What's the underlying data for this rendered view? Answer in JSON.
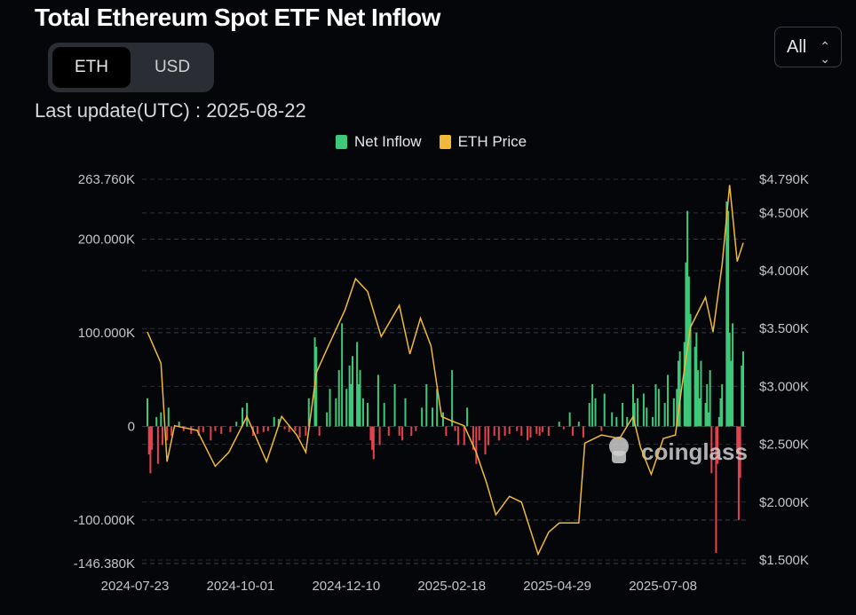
{
  "header": {
    "title": "Total Ethereum Spot ETF Net Inflow",
    "last_update": "Last update(UTC) : 2025-08-22"
  },
  "unit_toggle": {
    "options": [
      "ETH",
      "USD"
    ],
    "selected": "ETH"
  },
  "range_select": {
    "value": "All",
    "icon": "up-down-chevron-icon"
  },
  "watermark": "coinglass",
  "chart_data": {
    "type": "bar+line",
    "legend": {
      "placement": "top-center",
      "items": [
        {
          "name": "Net Inflow",
          "color": "#3ec97a"
        },
        {
          "name": "ETH Price",
          "color": "#f0b93a"
        }
      ]
    },
    "colors": {
      "positive": "#3ec97a",
      "negative": "#e5424d",
      "price": "#f0b93a"
    },
    "x_ticks": [
      "2024-07-23",
      "2024-10-01",
      "2024-12-10",
      "2025-02-18",
      "2025-04-29",
      "2025-07-08"
    ],
    "x_range": [
      "2024-07-23",
      "2025-08-22"
    ],
    "y_left": {
      "ticks": [
        "263.760K",
        "200.000K",
        "100.000K",
        "0",
        "-100.000K",
        "-146.380K"
      ],
      "range": [
        -146.38,
        263.76
      ],
      "unit": "K ETH"
    },
    "y_right": {
      "ticks": [
        "$4.790K",
        "$4.500K",
        "$4.000K",
        "$3.500K",
        "$3.000K",
        "$2.500K",
        "$2.000K",
        "$1.500K"
      ],
      "range": [
        1500,
        4790
      ],
      "unit": "USD"
    },
    "grid": true,
    "series": [
      {
        "name": "Net Inflow",
        "axis": "left",
        "points": [
          [
            "2024-07-23",
            30
          ],
          [
            "2024-07-24",
            -30
          ],
          [
            "2024-07-25",
            -50
          ],
          [
            "2024-07-26",
            -25
          ],
          [
            "2024-07-29",
            10
          ],
          [
            "2024-07-30",
            -40
          ],
          [
            "2024-08-01",
            15
          ],
          [
            "2024-08-02",
            -20
          ],
          [
            "2024-08-05",
            -15
          ],
          [
            "2024-08-06",
            20
          ],
          [
            "2024-08-08",
            -10
          ],
          [
            "2024-08-13",
            5
          ],
          [
            "2024-08-16",
            -5
          ],
          [
            "2024-08-21",
            -8
          ],
          [
            "2024-08-26",
            -10
          ],
          [
            "2024-08-29",
            -6
          ],
          [
            "2024-09-03",
            -15
          ],
          [
            "2024-09-06",
            -5
          ],
          [
            "2024-09-10",
            -8
          ],
          [
            "2024-09-16",
            -6
          ],
          [
            "2024-09-20",
            5
          ],
          [
            "2024-09-24",
            20
          ],
          [
            "2024-09-27",
            25
          ],
          [
            "2024-10-01",
            -10
          ],
          [
            "2024-10-04",
            -8
          ],
          [
            "2024-10-08",
            -6
          ],
          [
            "2024-10-11",
            -5
          ],
          [
            "2024-10-15",
            10
          ],
          [
            "2024-10-18",
            8
          ],
          [
            "2024-10-22",
            -3
          ],
          [
            "2024-10-25",
            -6
          ],
          [
            "2024-10-29",
            -5
          ],
          [
            "2024-11-01",
            -12
          ],
          [
            "2024-11-05",
            -10
          ],
          [
            "2024-11-07",
            30
          ],
          [
            "2024-11-11",
            95
          ],
          [
            "2024-11-12",
            85
          ],
          [
            "2024-11-14",
            -10
          ],
          [
            "2024-11-19",
            15
          ],
          [
            "2024-11-21",
            40
          ],
          [
            "2024-11-25",
            30
          ],
          [
            "2024-11-27",
            60
          ],
          [
            "2024-11-29",
            110
          ],
          [
            "2024-12-02",
            40
          ],
          [
            "2024-12-04",
            65
          ],
          [
            "2024-12-05",
            45
          ],
          [
            "2024-12-06",
            75
          ],
          [
            "2024-12-09",
            90
          ],
          [
            "2024-12-10",
            45
          ],
          [
            "2024-12-11",
            60
          ],
          [
            "2024-12-13",
            30
          ],
          [
            "2024-12-16",
            25
          ],
          [
            "2024-12-18",
            -15
          ],
          [
            "2024-12-19",
            -25
          ],
          [
            "2024-12-20",
            -35
          ],
          [
            "2024-12-23",
            55
          ],
          [
            "2024-12-24",
            -20
          ],
          [
            "2024-12-27",
            25
          ],
          [
            "2024-12-30",
            -10
          ],
          [
            "2025-01-03",
            45
          ],
          [
            "2025-01-06",
            -10
          ],
          [
            "2025-01-08",
            -15
          ],
          [
            "2025-01-10",
            30
          ],
          [
            "2025-01-14",
            -10
          ],
          [
            "2025-01-17",
            -5
          ],
          [
            "2025-01-21",
            20
          ],
          [
            "2025-01-24",
            45
          ],
          [
            "2025-01-28",
            20
          ],
          [
            "2025-01-31",
            40
          ],
          [
            "2025-02-04",
            15
          ],
          [
            "2025-02-06",
            -10
          ],
          [
            "2025-02-10",
            60
          ],
          [
            "2025-02-12",
            -5
          ],
          [
            "2025-02-14",
            -20
          ],
          [
            "2025-02-18",
            -20
          ],
          [
            "2025-02-20",
            20
          ],
          [
            "2025-02-24",
            -25
          ],
          [
            "2025-02-26",
            -40
          ],
          [
            "2025-02-28",
            -15
          ],
          [
            "2025-03-04",
            -30
          ],
          [
            "2025-03-06",
            -20
          ],
          [
            "2025-03-10",
            -10
          ],
          [
            "2025-03-13",
            -15
          ],
          [
            "2025-03-17",
            -10
          ],
          [
            "2025-03-20",
            -8
          ],
          [
            "2025-03-25",
            -5
          ],
          [
            "2025-03-28",
            -10
          ],
          [
            "2025-04-01",
            -15
          ],
          [
            "2025-04-03",
            -12
          ],
          [
            "2025-04-07",
            -8
          ],
          [
            "2025-04-09",
            -10
          ],
          [
            "2025-04-11",
            -6
          ],
          [
            "2025-04-15",
            -10
          ],
          [
            "2025-04-22",
            5
          ],
          [
            "2025-04-25",
            -3
          ],
          [
            "2025-04-29",
            15
          ],
          [
            "2025-05-01",
            -10
          ],
          [
            "2025-05-05",
            5
          ],
          [
            "2025-05-08",
            -12
          ],
          [
            "2025-05-12",
            25
          ],
          [
            "2025-05-14",
            45
          ],
          [
            "2025-05-16",
            30
          ],
          [
            "2025-05-20",
            -5
          ],
          [
            "2025-05-22",
            35
          ],
          [
            "2025-05-27",
            15
          ],
          [
            "2025-05-30",
            10
          ],
          [
            "2025-06-03",
            25
          ],
          [
            "2025-06-06",
            10
          ],
          [
            "2025-06-10",
            45
          ],
          [
            "2025-06-11",
            25
          ],
          [
            "2025-06-13",
            30
          ],
          [
            "2025-06-17",
            35
          ],
          [
            "2025-06-19",
            20
          ],
          [
            "2025-06-23",
            10
          ],
          [
            "2025-06-25",
            45
          ],
          [
            "2025-06-27",
            40
          ],
          [
            "2025-07-01",
            25
          ],
          [
            "2025-07-03",
            55
          ],
          [
            "2025-07-07",
            30
          ],
          [
            "2025-07-09",
            40
          ],
          [
            "2025-07-10",
            70
          ],
          [
            "2025-07-11",
            80
          ],
          [
            "2025-07-14",
            90
          ],
          [
            "2025-07-15",
            175
          ],
          [
            "2025-07-16",
            230
          ],
          [
            "2025-07-17",
            160
          ],
          [
            "2025-07-18",
            120
          ],
          [
            "2025-07-21",
            85
          ],
          [
            "2025-07-22",
            100
          ],
          [
            "2025-07-23",
            60
          ],
          [
            "2025-07-24",
            30
          ],
          [
            "2025-07-25",
            70
          ],
          [
            "2025-07-28",
            25
          ],
          [
            "2025-07-29",
            45
          ],
          [
            "2025-07-30",
            15
          ],
          [
            "2025-07-31",
            60
          ],
          [
            "2025-08-01",
            -50
          ],
          [
            "2025-08-04",
            -135
          ],
          [
            "2025-08-05",
            -40
          ],
          [
            "2025-08-06",
            10
          ],
          [
            "2025-08-07",
            30
          ],
          [
            "2025-08-08",
            45
          ],
          [
            "2025-08-11",
            240
          ],
          [
            "2025-08-12",
            230
          ],
          [
            "2025-08-13",
            100
          ],
          [
            "2025-08-14",
            70
          ],
          [
            "2025-08-15",
            110
          ],
          [
            "2025-08-18",
            -30
          ],
          [
            "2025-08-19",
            -100
          ],
          [
            "2025-08-20",
            -55
          ],
          [
            "2025-08-21",
            65
          ],
          [
            "2025-08-22",
            80
          ]
        ]
      },
      {
        "name": "ETH Price",
        "axis": "right",
        "points": [
          [
            "2024-07-23",
            3470
          ],
          [
            "2024-08-01",
            3200
          ],
          [
            "2024-08-05",
            2350
          ],
          [
            "2024-08-10",
            2660
          ],
          [
            "2024-08-25",
            2620
          ],
          [
            "2024-09-06",
            2310
          ],
          [
            "2024-09-15",
            2430
          ],
          [
            "2024-09-27",
            2740
          ],
          [
            "2024-10-10",
            2350
          ],
          [
            "2024-10-20",
            2740
          ],
          [
            "2024-10-30",
            2580
          ],
          [
            "2024-11-05",
            2430
          ],
          [
            "2024-11-12",
            3120
          ],
          [
            "2024-11-20",
            3350
          ],
          [
            "2024-12-01",
            3660
          ],
          [
            "2024-12-08",
            3930
          ],
          [
            "2024-12-16",
            3820
          ],
          [
            "2024-12-25",
            3430
          ],
          [
            "2025-01-06",
            3700
          ],
          [
            "2025-01-13",
            3280
          ],
          [
            "2025-01-20",
            3590
          ],
          [
            "2025-01-27",
            3350
          ],
          [
            "2025-02-03",
            2740
          ],
          [
            "2025-02-10",
            2700
          ],
          [
            "2025-02-18",
            2660
          ],
          [
            "2025-02-26",
            2430
          ],
          [
            "2025-03-05",
            2160
          ],
          [
            "2025-03-11",
            1890
          ],
          [
            "2025-03-20",
            2050
          ],
          [
            "2025-03-28",
            2000
          ],
          [
            "2025-04-08",
            1550
          ],
          [
            "2025-04-15",
            1740
          ],
          [
            "2025-04-22",
            1820
          ],
          [
            "2025-04-29",
            1820
          ],
          [
            "2025-05-05",
            1820
          ],
          [
            "2025-05-09",
            2510
          ],
          [
            "2025-05-20",
            2580
          ],
          [
            "2025-06-01",
            2550
          ],
          [
            "2025-06-10",
            2740
          ],
          [
            "2025-06-15",
            2470
          ],
          [
            "2025-06-22",
            2240
          ],
          [
            "2025-06-30",
            2550
          ],
          [
            "2025-07-08",
            2580
          ],
          [
            "2025-07-12",
            2970
          ],
          [
            "2025-07-18",
            3510
          ],
          [
            "2025-07-28",
            3770
          ],
          [
            "2025-08-02",
            3470
          ],
          [
            "2025-08-08",
            4050
          ],
          [
            "2025-08-13",
            4740
          ],
          [
            "2025-08-18",
            4080
          ],
          [
            "2025-08-22",
            4240
          ]
        ]
      }
    ]
  }
}
